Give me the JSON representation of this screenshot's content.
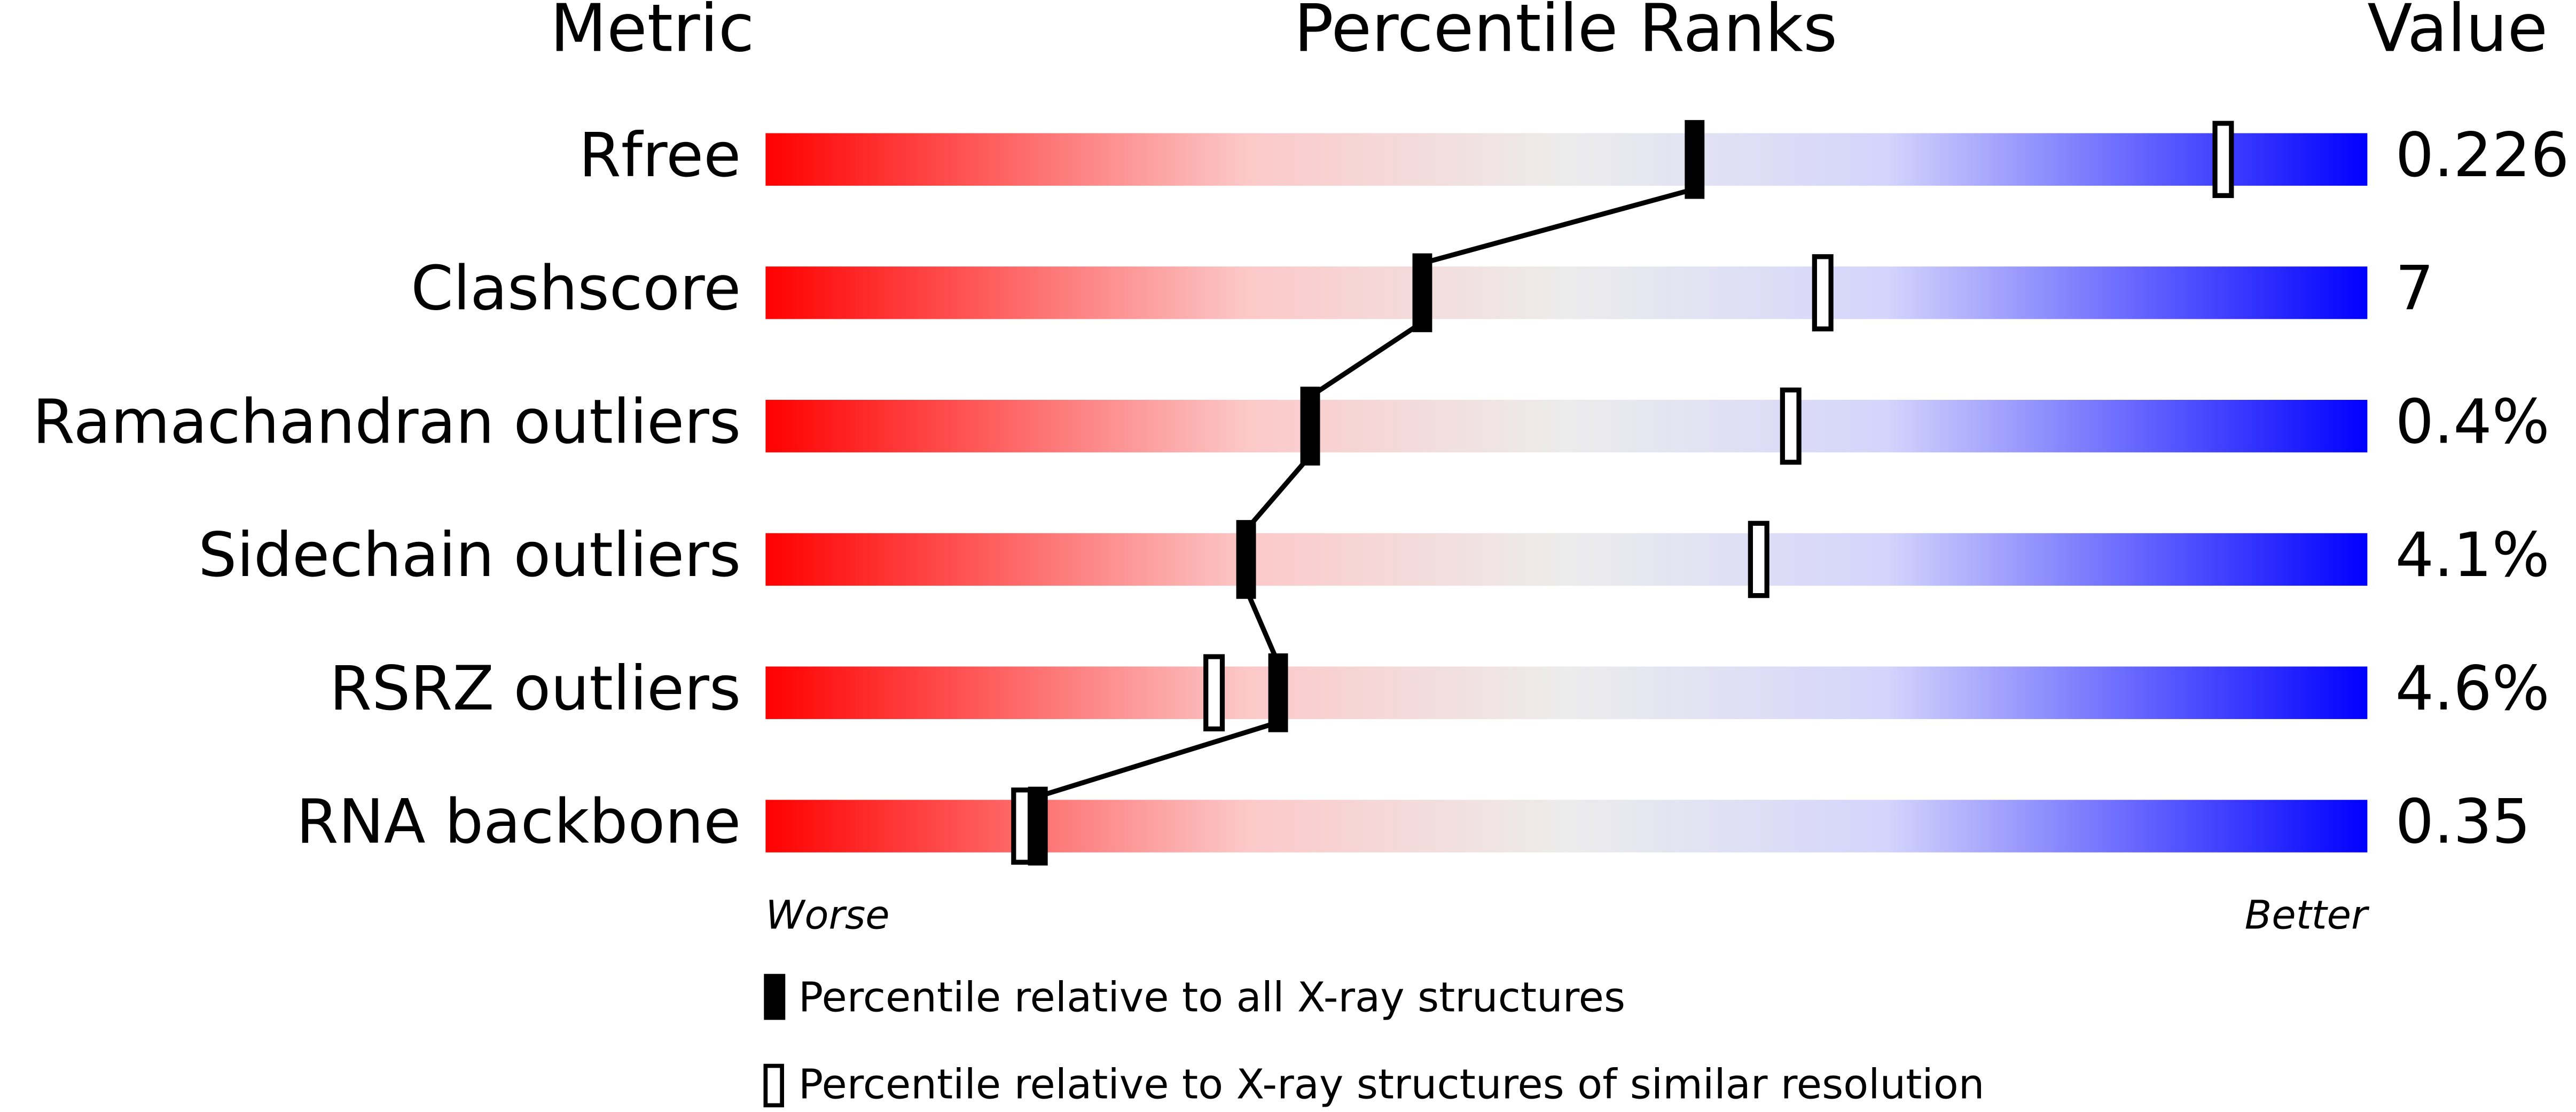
{
  "chart_data": {
    "type": "percentile",
    "headers": [
      "Metric",
      "Percentile Ranks",
      "Value"
    ],
    "categories": [
      "Rfree",
      "Clashscore",
      "Ramachandran outliers",
      "Sidechain outliers",
      "RSRZ outliers",
      "RNA backbone"
    ],
    "metric_values": [
      "0.226",
      "7",
      "0.4%",
      "4.1%",
      "4.6%",
      "0.35"
    ],
    "xlim": [
      0,
      100
    ],
    "scale_ends": [
      "Worse",
      "Better"
    ],
    "series": [
      {
        "name": "Percentile relative to all X-ray structures",
        "color": "#000000",
        "filled": true,
        "connected": true,
        "values": [
          58,
          41,
          34,
          30,
          32,
          17
        ]
      },
      {
        "name": "Percentile relative to X-ray structures of similar resolution",
        "color": "#000000",
        "filled": false,
        "connected": false,
        "values": [
          91,
          66,
          64,
          62,
          28,
          16
        ]
      }
    ]
  }
}
